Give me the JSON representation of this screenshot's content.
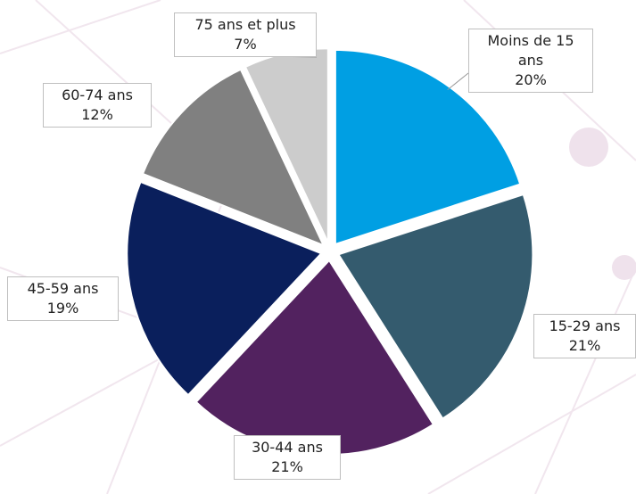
{
  "chart_data": {
    "type": "pie",
    "categories": [
      "Moins de 15 ans",
      "15-29 ans",
      "30-44 ans",
      "45-59 ans",
      "60-74 ans",
      "75 ans et plus"
    ],
    "values": [
      20,
      21,
      21,
      19,
      12,
      7
    ],
    "value_labels": [
      "20%",
      "21%",
      "21%",
      "19%",
      "12%",
      "7%"
    ],
    "colors": [
      "#009fe3",
      "#345b6e",
      "#52225f",
      "#0a1f5c",
      "#808080",
      "#cccccc"
    ]
  }
}
